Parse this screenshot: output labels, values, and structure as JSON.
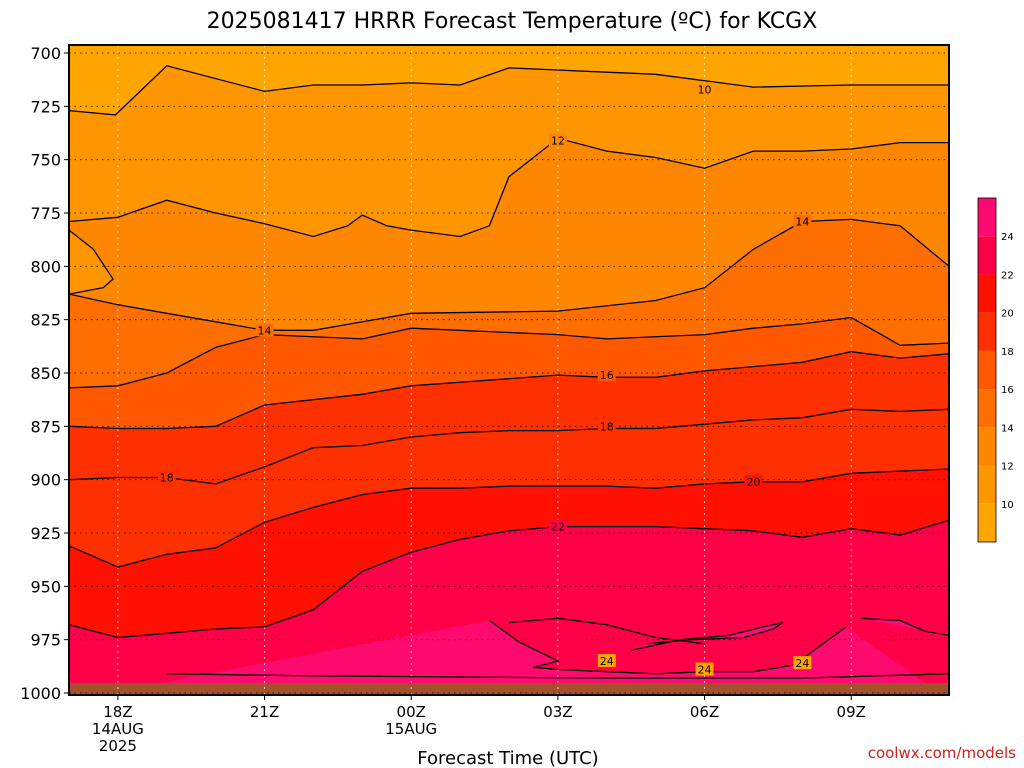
{
  "chart_data": {
    "type": "contour",
    "title": "2025081417 HRRR Forecast Temperature (ºC) for KCGX",
    "xlabel": "Forecast Time (UTC)",
    "ylabel": "",
    "credit": "coolwx.com/models",
    "y_axis": {
      "ticks": [
        700,
        725,
        750,
        775,
        800,
        825,
        850,
        875,
        900,
        925,
        950,
        975,
        1000
      ],
      "labels": [
        "700",
        "725",
        "750",
        "775",
        "800",
        "825",
        "850",
        "875",
        "900",
        "925",
        "950",
        "975",
        "1000"
      ]
    },
    "x_axis": {
      "range_hours": [
        -1,
        17
      ],
      "ticks": [
        {
          "hour": 0,
          "lines": [
            "18Z",
            "14AUG",
            "2025"
          ]
        },
        {
          "hour": 3,
          "lines": [
            "21Z"
          ]
        },
        {
          "hour": 6,
          "lines": [
            "00Z",
            "15AUG"
          ]
        },
        {
          "hour": 9,
          "lines": [
            "03Z"
          ]
        },
        {
          "hour": 12,
          "lines": [
            "06Z"
          ]
        },
        {
          "hour": 15,
          "lines": [
            "09Z"
          ]
        }
      ]
    },
    "colorbar": {
      "levels": [
        8,
        10,
        12,
        14,
        16,
        18,
        20,
        22,
        24,
        26
      ],
      "labels": [
        "10",
        "12",
        "14",
        "16",
        "18",
        "20",
        "22",
        "24"
      ],
      "colors": [
        "#ffa500",
        "#ff9500",
        "#ff8600",
        "#ff6e00",
        "#ff5800",
        "#ff3000",
        "#ff1000",
        "#ff0048",
        "#ff0a70"
      ]
    },
    "contours": [
      {
        "level": 10,
        "label": "10",
        "label_at": [
          12,
          717
        ],
        "p": [
          [
            -1,
            727
          ],
          [
            -0.05,
            729
          ],
          [
            1,
            706
          ],
          [
            3,
            718
          ],
          [
            4,
            715
          ],
          [
            5,
            715
          ],
          [
            6,
            714
          ],
          [
            7,
            715
          ],
          [
            8,
            707
          ],
          [
            10,
            709
          ],
          [
            11,
            710
          ],
          [
            13,
            716
          ],
          [
            15,
            715
          ],
          [
            17,
            715
          ]
        ]
      },
      {
        "level": 12,
        "label": "12",
        "label_at": [
          9,
          741
        ],
        "p": [
          [
            -1,
            779
          ],
          [
            0,
            777
          ],
          [
            1,
            769
          ],
          [
            2,
            775
          ],
          [
            3,
            780
          ],
          [
            4,
            786
          ],
          [
            4.7,
            781
          ],
          [
            5,
            776
          ],
          [
            5.5,
            781
          ],
          [
            6,
            783
          ],
          [
            7,
            786
          ],
          [
            7.6,
            781
          ],
          [
            8,
            758
          ],
          [
            9,
            740
          ],
          [
            10,
            746
          ],
          [
            11,
            749
          ],
          [
            12,
            754
          ],
          [
            13,
            746
          ],
          [
            14,
            746
          ],
          [
            15,
            745
          ],
          [
            16,
            742
          ],
          [
            17,
            742
          ]
        ]
      },
      {
        "level": 12,
        "label": "",
        "p": [
          [
            -1,
            783
          ],
          [
            -0.5,
            792
          ],
          [
            -0.1,
            806
          ],
          [
            -0.3,
            810
          ],
          [
            -1,
            813
          ]
        ]
      },
      {
        "level": 14,
        "label": "14",
        "label_at": [
          3,
          830
        ],
        "p": [
          [
            -1,
            813
          ],
          [
            0,
            818
          ],
          [
            1,
            822
          ],
          [
            2,
            826
          ],
          [
            3,
            830
          ],
          [
            4,
            830
          ],
          [
            6,
            822
          ],
          [
            9,
            821
          ],
          [
            11,
            816
          ],
          [
            12,
            810
          ],
          [
            13,
            792
          ],
          [
            14,
            779
          ],
          [
            15,
            778
          ],
          [
            16,
            781
          ],
          [
            17,
            800
          ]
        ]
      },
      {
        "level": 14,
        "label": "14",
        "label_at": [
          14,
          779
        ],
        "p": []
      },
      {
        "level": 16,
        "label": "16",
        "label_at": [
          10,
          851
        ],
        "p": [
          [
            -1,
            857
          ],
          [
            0,
            856
          ],
          [
            1,
            850
          ],
          [
            2,
            838
          ],
          [
            3,
            832
          ],
          [
            5,
            834
          ],
          [
            6,
            829
          ],
          [
            9,
            832
          ],
          [
            10,
            834
          ],
          [
            12,
            832
          ],
          [
            13,
            829
          ],
          [
            14,
            827
          ],
          [
            15,
            824
          ],
          [
            16,
            837
          ],
          [
            17,
            836
          ]
        ]
      },
      {
        "level": 18,
        "label": "18",
        "label_at": [
          10,
          875
        ],
        "p": [
          [
            -1,
            875
          ],
          [
            0,
            876
          ],
          [
            1,
            876
          ],
          [
            2,
            875
          ],
          [
            3,
            865
          ],
          [
            5,
            860
          ],
          [
            6,
            856
          ],
          [
            9,
            851
          ],
          [
            10,
            852
          ],
          [
            11,
            852
          ],
          [
            12,
            849
          ],
          [
            13,
            847
          ],
          [
            14,
            845
          ],
          [
            15,
            840
          ],
          [
            16,
            843
          ],
          [
            17,
            841
          ]
        ]
      },
      {
        "level": 18,
        "label": "18",
        "label_at": [
          1,
          899
        ],
        "p": [
          [
            -1,
            900
          ],
          [
            0,
            899
          ],
          [
            1,
            899
          ],
          [
            2,
            902
          ],
          [
            3,
            894
          ],
          [
            4,
            885
          ],
          [
            5,
            884
          ],
          [
            6,
            880
          ],
          [
            7,
            878
          ],
          [
            8,
            877
          ],
          [
            9,
            877
          ],
          [
            10,
            876
          ],
          [
            11,
            876
          ],
          [
            12,
            874
          ],
          [
            13,
            872
          ],
          [
            14,
            871
          ],
          [
            15,
            867
          ],
          [
            16,
            868
          ],
          [
            17,
            867
          ]
        ]
      },
      {
        "level": 20,
        "label": "20",
        "label_at": [
          13,
          901
        ],
        "p": [
          [
            -1,
            931
          ],
          [
            0,
            941
          ],
          [
            1,
            935
          ],
          [
            2,
            932
          ],
          [
            3,
            920
          ],
          [
            4,
            913
          ],
          [
            5,
            907
          ],
          [
            6,
            904
          ],
          [
            7,
            904
          ],
          [
            8,
            903
          ],
          [
            9,
            903
          ],
          [
            10,
            903
          ],
          [
            11,
            904
          ],
          [
            12,
            902
          ],
          [
            13,
            901
          ],
          [
            14,
            901
          ],
          [
            15,
            897
          ],
          [
            16,
            896
          ],
          [
            17,
            895
          ]
        ]
      },
      {
        "level": 22,
        "label": "22",
        "label_at": [
          9,
          922
        ],
        "p": [
          [
            -1,
            968
          ],
          [
            0,
            974
          ],
          [
            1,
            972
          ],
          [
            2,
            970
          ],
          [
            3,
            969
          ],
          [
            4,
            961
          ],
          [
            5,
            943
          ],
          [
            6,
            934
          ],
          [
            7,
            928
          ],
          [
            8,
            924
          ],
          [
            9,
            922
          ],
          [
            10,
            922
          ],
          [
            11,
            922
          ],
          [
            12,
            923
          ],
          [
            13,
            924
          ],
          [
            14,
            927
          ],
          [
            15,
            923
          ],
          [
            16,
            926
          ],
          [
            17,
            919
          ]
        ]
      },
      {
        "level": 24,
        "label": "24",
        "label_at": [
          10,
          985
        ],
        "p": [
          [
            7.6,
            966
          ],
          [
            8.2,
            976
          ],
          [
            9,
            985
          ],
          [
            8.5,
            988
          ],
          [
            9,
            989
          ],
          [
            10,
            990
          ],
          [
            11,
            991
          ],
          [
            12,
            990
          ],
          [
            13,
            990
          ],
          [
            13.8,
            987
          ],
          [
            14,
            984
          ],
          [
            14.3,
            979
          ],
          [
            14.9,
            969
          ]
        ]
      },
      {
        "level": 24,
        "label": "24",
        "label_at": [
          12,
          989
        ],
        "p": [
          [
            10.5,
            980
          ],
          [
            11.5,
            975
          ],
          [
            12.5,
            973
          ],
          [
            13.2,
            969
          ],
          [
            13.6,
            967
          ],
          [
            13.4,
            970
          ],
          [
            12.8,
            974
          ],
          [
            11.7,
            975
          ],
          [
            10.8,
            977
          ]
        ]
      },
      {
        "level": 24,
        "label": "24",
        "label_at": [
          14,
          986
        ],
        "p": [
          [
            15.2,
            965
          ],
          [
            16,
            966
          ],
          [
            16.5,
            971
          ],
          [
            17,
            973
          ]
        ]
      },
      {
        "level": 24,
        "label": "",
        "p": [
          [
            8,
            967
          ],
          [
            9,
            965
          ],
          [
            10,
            968
          ],
          [
            11,
            974
          ],
          [
            12,
            977
          ]
        ]
      }
    ]
  }
}
